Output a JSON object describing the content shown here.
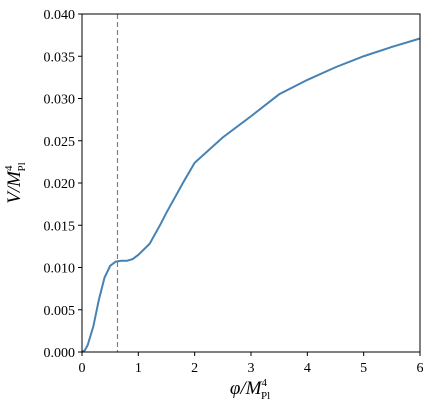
{
  "chart_data": {
    "type": "line",
    "x_label": {
      "main": "φ/M",
      "sup": "4",
      "sub": "Pl"
    },
    "y_label": {
      "main": "V/M",
      "sup": "4",
      "sub": "Pl"
    },
    "x": [
      0,
      0.05,
      0.1,
      0.2,
      0.3,
      0.4,
      0.5,
      0.6,
      0.7,
      0.8,
      0.9,
      1.0,
      1.2,
      1.4,
      1.5,
      1.6,
      1.8,
      2.0,
      2.5,
      3.0,
      3.5,
      4.0,
      4.5,
      5.0,
      5.5,
      6.0
    ],
    "series": [
      {
        "color": "#4682b4",
        "values": [
          0,
          0.0002,
          0.0008,
          0.003,
          0.0062,
          0.0088,
          0.0102,
          0.0107,
          0.0108,
          0.0108,
          0.011,
          0.0115,
          0.0128,
          0.0152,
          0.0165,
          0.0177,
          0.0201,
          0.0224,
          0.0254,
          0.0279,
          0.0305,
          0.0322,
          0.0337,
          0.035,
          0.0361,
          0.0371
        ]
      }
    ],
    "vline": {
      "x": 0.63,
      "color": "#808080"
    },
    "xlim": [
      0,
      6
    ],
    "ylim": [
      0,
      0.04
    ],
    "xticks": [
      0,
      1,
      2,
      3,
      4,
      5,
      6
    ],
    "yticks": [
      {
        "value": 0,
        "label": "0.000"
      },
      {
        "value": 0.005,
        "label": "0.005"
      },
      {
        "value": 0.01,
        "label": "0.010"
      },
      {
        "value": 0.015,
        "label": "0.015"
      },
      {
        "value": 0.02,
        "label": "0.020"
      },
      {
        "value": 0.025,
        "label": "0.025"
      },
      {
        "value": 0.03,
        "label": "0.030"
      },
      {
        "value": 0.035,
        "label": "0.035"
      },
      {
        "value": 0.04,
        "label": "0.040"
      }
    ]
  }
}
